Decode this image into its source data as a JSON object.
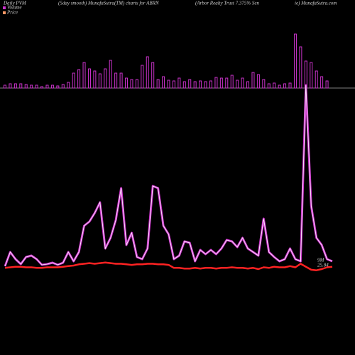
{
  "chart_data": {
    "type": "pvm",
    "title": "Daily PVM",
    "subtitle": "(5day smooth) MunafaSutra(TM) charts for ABRN",
    "header_left": "(Arbor Realty Trust 7.375% Sen",
    "header_right": "ie) MunafaSutra.com",
    "annotations": [
      "9M",
      "25.84"
    ],
    "series": [
      {
        "name": "Volume",
        "type": "bar",
        "color": "#cc33cc",
        "ylim": [
          0,
          80
        ],
        "values": [
          4,
          6,
          6,
          6,
          5,
          4,
          4,
          2,
          4,
          4,
          3,
          5,
          8,
          21,
          26,
          36,
          27,
          24,
          20,
          27,
          39,
          21,
          21,
          14,
          12,
          12,
          32,
          44,
          36,
          12,
          16,
          11,
          10,
          14,
          9,
          12,
          9,
          10,
          9,
          10,
          15,
          14,
          14,
          18,
          11,
          14,
          9,
          22,
          19,
          12,
          6,
          7,
          4,
          6,
          7,
          76,
          58,
          38,
          36,
          24,
          16,
          10,
          null
        ]
      },
      {
        "name": "Volume",
        "type": "line",
        "color": "#cc33cc",
        "ylim": [
          0,
          268
        ],
        "values": [
          3,
          23,
          13,
          6,
          16,
          18,
          13,
          5,
          6,
          8,
          5,
          8,
          23,
          10,
          23,
          60,
          66,
          78,
          93,
          28,
          43,
          68,
          113,
          33,
          50,
          16,
          13,
          28,
          116,
          113,
          60,
          48,
          13,
          18,
          38,
          36,
          10,
          26,
          20,
          26,
          20,
          28,
          40,
          38,
          30,
          43,
          28,
          23,
          18,
          70,
          23,
          16,
          10,
          13,
          28,
          13,
          10,
          258,
          88,
          43,
          33,
          13,
          10
        ]
      },
      {
        "name": "Price",
        "type": "line",
        "color": "#ff2222",
        "ylim": [
          24.1,
          41.1
        ],
        "values": [
          25.75,
          25.8,
          25.85,
          25.85,
          25.8,
          25.8,
          25.75,
          25.75,
          25.8,
          25.8,
          25.8,
          25.85,
          25.9,
          25.95,
          26.05,
          26.1,
          26.15,
          26.1,
          26.15,
          26.2,
          26.15,
          26.1,
          26.1,
          26.05,
          26.0,
          26.05,
          26.05,
          26.1,
          26.1,
          26.05,
          26.05,
          26.0,
          25.75,
          25.75,
          25.7,
          25.7,
          25.75,
          25.7,
          25.75,
          25.75,
          25.7,
          25.75,
          25.75,
          25.8,
          25.75,
          25.75,
          25.7,
          25.75,
          25.65,
          25.8,
          25.75,
          25.85,
          25.8,
          25.8,
          25.9,
          25.8,
          26.1,
          25.85,
          25.6,
          25.55,
          25.65,
          25.8,
          25.84
        ]
      }
    ]
  }
}
